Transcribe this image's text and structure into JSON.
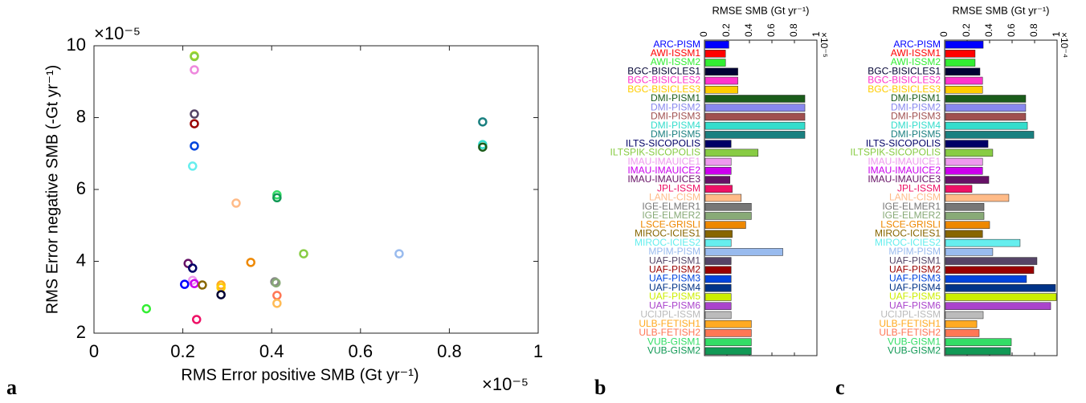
{
  "chart_data": [
    {
      "type": "scatter",
      "panel": "a",
      "xlabel": "RMS Error positive SMB (Gt yr⁻¹)",
      "ylabel": "RMS Error negative SMB (-Gt yr⁻¹)",
      "x_exponent": "×10⁻⁵",
      "y_exponent": "×10⁻⁵",
      "xlim": [
        0,
        1
      ],
      "xticks": [
        0,
        0.2,
        0.4,
        0.6,
        0.8,
        1
      ],
      "ylim": [
        2,
        10
      ],
      "yticks": [
        2,
        4,
        6,
        8,
        10
      ],
      "x": [
        0.226,
        0.226,
        0.226,
        0.226,
        0.226,
        0.226,
        0.222,
        0.32,
        0.412,
        0.412,
        0.875,
        0.875,
        0.875,
        0.472,
        0.687,
        0.353,
        0.212,
        0.222,
        0.222,
        0.226,
        0.204,
        0.244,
        0.286,
        0.286,
        0.286,
        0.407,
        0.41,
        0.412,
        0.412,
        0.118,
        0.231
      ],
      "values": [
        9.72,
        9.7,
        9.33,
        8.1,
        7.83,
        7.21,
        6.65,
        5.62,
        5.85,
        5.77,
        7.88,
        7.25,
        7.18,
        4.21,
        4.21,
        3.97,
        3.94,
        3.81,
        3.47,
        3.38,
        3.36,
        3.34,
        3.34,
        3.27,
        3.07,
        3.43,
        3.4,
        3.05,
        2.83,
        2.68,
        2.38
      ],
      "colors": [
        "#ccee00",
        "#88cc44",
        "#ee88dd",
        "#554466",
        "#990000",
        "#0044dd",
        "#66eeee",
        "#ffbb88",
        "#33dd66",
        "#119955",
        "#1a8080",
        "#33ddcc",
        "#1a5c1a",
        "#88cc44",
        "#99bbee",
        "#ee8800",
        "#661166",
        "#000066",
        "#ee99ee",
        "#cc00ee",
        "#0000ff",
        "#886600",
        "#ffaa22",
        "#ffcc00",
        "#000033",
        "#888888",
        "#88aa77",
        "#ff7755",
        "#ffbb55",
        "#33ee33",
        "#ee1166"
      ]
    },
    {
      "type": "barh",
      "panel": "b",
      "xlabel": "RMSE SMB (Gt yr⁻¹)",
      "x_exponent": "×10⁻⁵",
      "xlim": [
        0,
        1
      ],
      "xticks": [
        0,
        0.2,
        0.4,
        0.6,
        0.8,
        1
      ],
      "categories": [
        "ARC-PISM",
        "AWI-ISSM1",
        "AWI-ISSM2",
        "BGC-BISICLES1",
        "BGC-BISICLES2",
        "BGC-BISICLES3",
        "DMI-PISM1",
        "DMI-PISM2",
        "DMI-PISM3",
        "DMI-PISM4",
        "DMI-PISM5",
        "ILTS-SICOPOLIS",
        "ILTSPIK-SICOPOLIS",
        "IMAU-IMAUICE1",
        "IMAU-IMAUICE2",
        "IMAU-IMAUICE3",
        "JPL-ISSM",
        "LANL-CISM",
        "IGE-ELMER1",
        "IGE-ELMER2",
        "LSCE-GRISLI",
        "MIROC-ICIES1",
        "MIROC-ICIES2",
        "MPIM-PISM",
        "UAF-PISM1",
        "UAF-PISM2",
        "UAF-PISM3",
        "UAF-PISM4",
        "UAF-PISM5",
        "UAF-PISM6",
        "UCIJPL-ISSM",
        "ULB-FETISH1",
        "ULB-FETISH2",
        "VUB-GISM1",
        "VUB-GISM2"
      ],
      "values": [
        0.21,
        0.18,
        0.18,
        0.29,
        0.29,
        0.29,
        0.886,
        0.886,
        0.886,
        0.886,
        0.886,
        0.23,
        0.47,
        0.23,
        0.23,
        0.22,
        0.24,
        0.32,
        0.41,
        0.41,
        0.36,
        0.24,
        0.23,
        0.69,
        0.23,
        0.23,
        0.23,
        0.23,
        0.23,
        0.23,
        0.23,
        0.41,
        0.41,
        0.41,
        0.41
      ],
      "colors": [
        "#0000ff",
        "#ff0000",
        "#33ee33",
        "#000033",
        "#ff33cc",
        "#ffcc00",
        "#1a5c1a",
        "#8888ee",
        "#a05050",
        "#33ddcc",
        "#1a8080",
        "#000066",
        "#88cc44",
        "#ee99ee",
        "#cc00ee",
        "#661166",
        "#ee1166",
        "#ffbb88",
        "#777777",
        "#88aa77",
        "#ee8800",
        "#886600",
        "#66eeee",
        "#99bbee",
        "#554466",
        "#990000",
        "#0044dd",
        "#003388",
        "#ccee00",
        "#aa44cc",
        "#bbbbbb",
        "#ffaa22",
        "#ff7755",
        "#33dd66",
        "#119955"
      ]
    },
    {
      "type": "barh",
      "panel": "c",
      "xlabel": "RMSE SMB (Gt yr⁻¹)",
      "x_exponent": "×10⁻⁴",
      "xlim": [
        0,
        1
      ],
      "xticks": [
        0,
        0.2,
        0.4,
        0.6,
        0.8,
        1
      ],
      "categories": [
        "ARC-PISM",
        "AWI-ISSM1",
        "AWI-ISSM2",
        "BGC-BISICLES1",
        "BGC-BISICLES2",
        "BGC-BISICLES3",
        "DMI-PISM1",
        "DMI-PISM2",
        "DMI-PISM3",
        "DMI-PISM4",
        "DMI-PISM5",
        "ILTS-SICOPOLIS",
        "ILTSPIK-SICOPOLIS",
        "IMAU-IMAUICE1",
        "IMAU-IMAUICE2",
        "IMAU-IMAUICE3",
        "JPL-ISSM",
        "LANL-CISM",
        "IGE-ELMER1",
        "IGE-ELMER2",
        "LSCE-GRISLI",
        "MIROC-ICIES1",
        "MIROC-ICIES2",
        "MPIM-PISM",
        "UAF-PISM1",
        "UAF-PISM2",
        "UAF-PISM3",
        "UAF-PISM4",
        "UAF-PISM5",
        "UAF-PISM6",
        "UCIJPL-ISSM",
        "ULB-FETISH1",
        "ULB-FETISH2",
        "VUB-GISM1",
        "VUB-GISM2"
      ],
      "values": [
        0.336,
        0.264,
        0.264,
        0.307,
        0.33,
        0.33,
        0.714,
        0.714,
        0.714,
        0.729,
        0.786,
        0.379,
        0.421,
        0.33,
        0.33,
        0.386,
        0.236,
        0.564,
        0.343,
        0.343,
        0.393,
        0.33,
        0.664,
        0.421,
        0.814,
        0.786,
        0.721,
        0.979,
        0.986,
        0.936,
        0.336,
        0.279,
        0.3,
        0.586,
        0.579
      ],
      "colors": [
        "#0000ff",
        "#ff0000",
        "#33ee33",
        "#000033",
        "#ff33cc",
        "#ffcc00",
        "#1a5c1a",
        "#8888ee",
        "#a05050",
        "#33ddcc",
        "#1a8080",
        "#000066",
        "#88cc44",
        "#ee99ee",
        "#cc00ee",
        "#661166",
        "#ee1166",
        "#ffbb88",
        "#777777",
        "#88aa77",
        "#ee8800",
        "#886600",
        "#66eeee",
        "#99bbee",
        "#554466",
        "#990000",
        "#0044dd",
        "#003388",
        "#ccee00",
        "#aa44cc",
        "#bbbbbb",
        "#ffaa22",
        "#ff7755",
        "#33dd66",
        "#119955"
      ]
    }
  ]
}
